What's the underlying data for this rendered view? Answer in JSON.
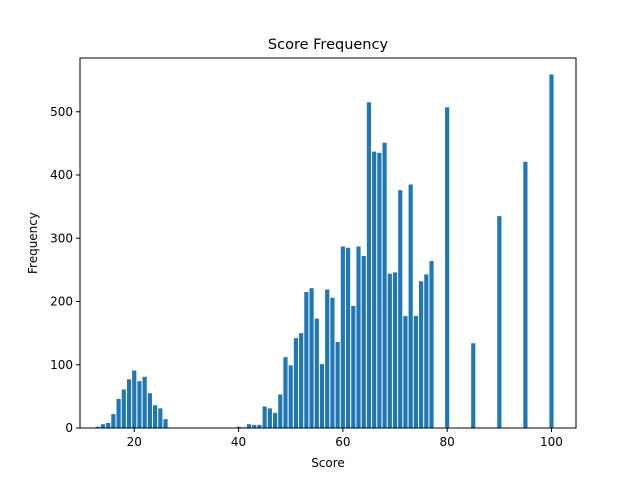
{
  "chart_data": {
    "type": "bar",
    "title": "Score Frequency",
    "xlabel": "Score",
    "ylabel": "Frequency",
    "xlim": [
      9.6,
      104.7
    ],
    "ylim": [
      0,
      585
    ],
    "xticks": [
      20,
      40,
      60,
      80,
      100
    ],
    "yticks": [
      0,
      100,
      200,
      300,
      400,
      500
    ],
    "bar_color": "#1f77b4",
    "grid": false,
    "legend": "none",
    "x": [
      13,
      14,
      15,
      16,
      17,
      18,
      19,
      20,
      21,
      22,
      23,
      24,
      25,
      26,
      40,
      41,
      42,
      43,
      44,
      45,
      46,
      47,
      48,
      49,
      50,
      51,
      52,
      53,
      54,
      55,
      56,
      57,
      58,
      59,
      60,
      61,
      62,
      63,
      64,
      65,
      66,
      67,
      68,
      69,
      70,
      71,
      72,
      73,
      74,
      75,
      76,
      77,
      78,
      80,
      85,
      90,
      95,
      100
    ],
    "values": [
      2,
      6,
      8,
      22,
      46,
      61,
      77,
      91,
      74,
      81,
      55,
      36,
      31,
      14,
      2,
      1,
      6,
      5,
      5,
      34,
      31,
      24,
      53,
      112,
      99,
      142,
      150,
      215,
      221,
      173,
      101,
      219,
      206,
      136,
      287,
      285,
      193,
      287,
      272,
      515,
      437,
      435,
      451,
      244,
      246,
      376,
      177,
      385,
      177,
      232,
      243,
      264,
      0,
      507,
      134,
      335,
      421,
      559
    ]
  }
}
